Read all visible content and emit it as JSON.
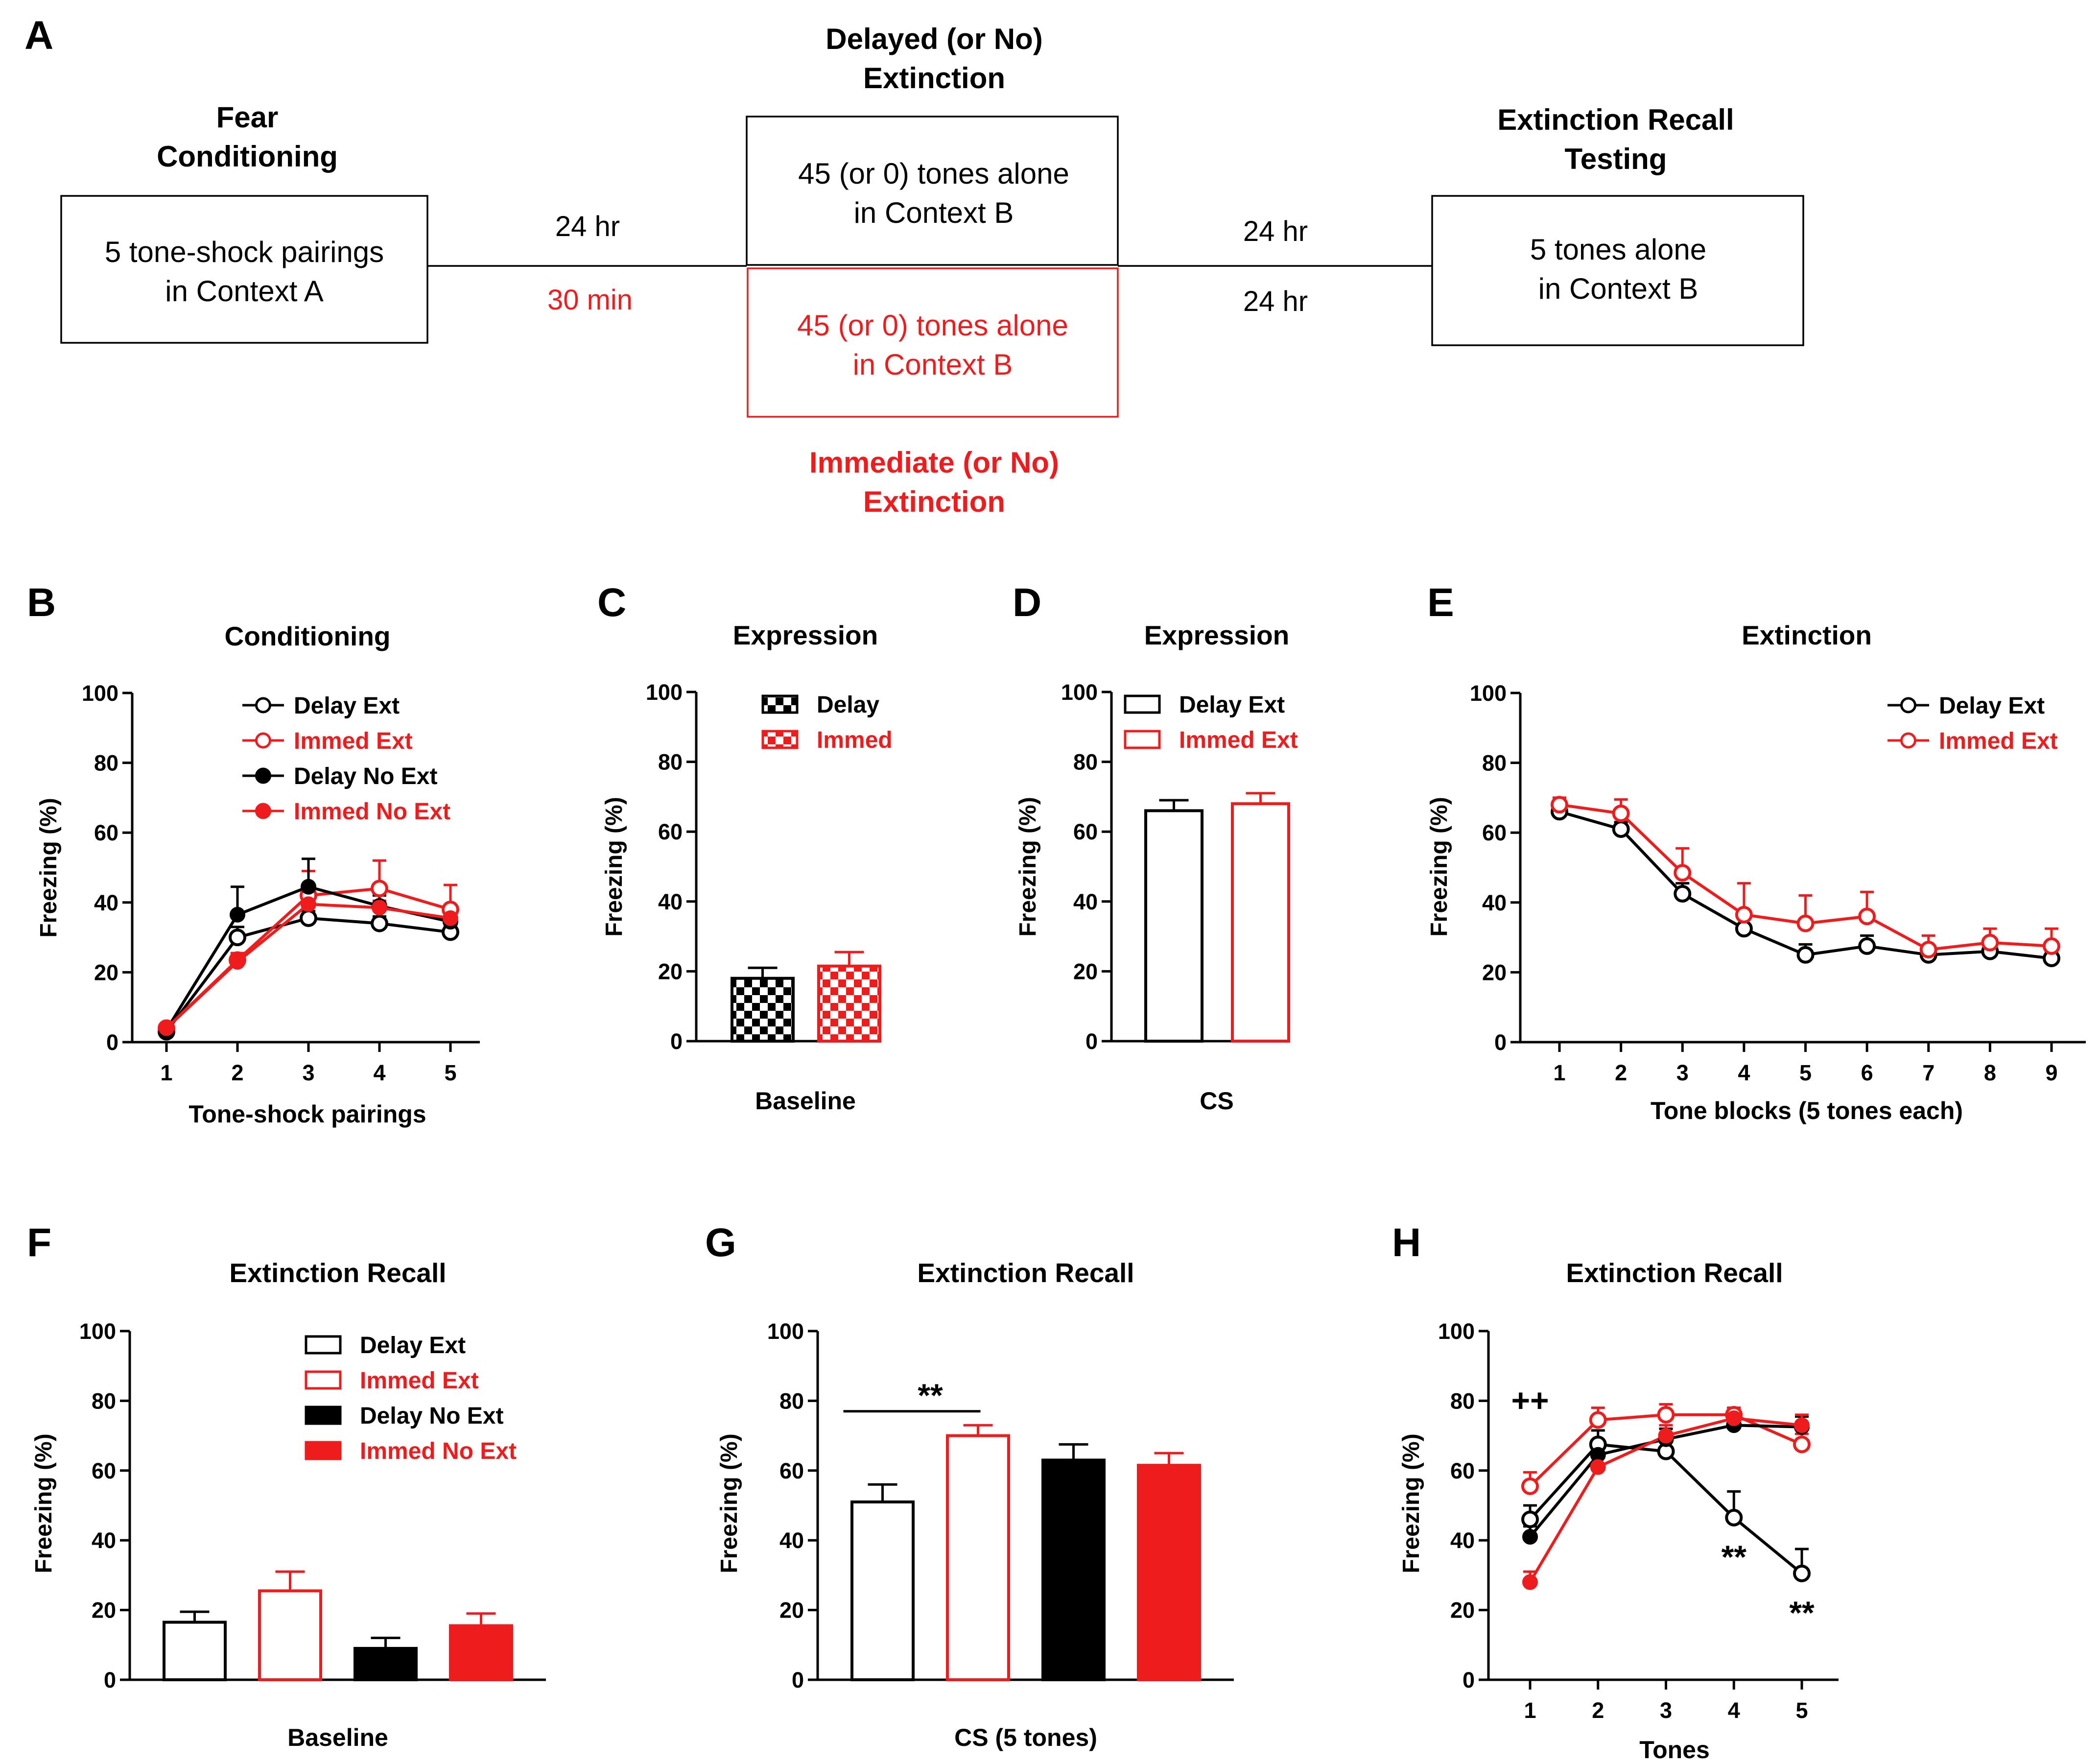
{
  "colors": {
    "black": "#000000",
    "red": "#ee1c1c"
  },
  "diagram": {
    "panel": "A",
    "fear_head": [
      "Fear",
      "Conditioning"
    ],
    "fear_box": [
      "5 tone-shock pairings",
      "in Context A"
    ],
    "delayed_head": [
      "Delayed (or No)",
      "Extinction"
    ],
    "delayed_box": [
      "45 (or 0) tones alone",
      "in Context B"
    ],
    "immediate_box": [
      "45 (or 0) tones alone",
      "in Context B"
    ],
    "immediate_head": [
      "Immediate (or No)",
      "Extinction"
    ],
    "recall_head": [
      "Extinction Recall",
      "Testing"
    ],
    "recall_box": [
      "5 tones alone",
      "in Context B"
    ],
    "time_delay_1": "24 hr",
    "time_immed_1": "30 min",
    "time_2a": "24 hr",
    "time_2b": "24 hr"
  },
  "chart_data": [
    {
      "panel": "B",
      "type": "line",
      "title": "Conditioning",
      "xlabel": "Tone-shock pairings",
      "ylabel": "Freezing (%)",
      "x": [
        1,
        2,
        3,
        4,
        5
      ],
      "ylim": [
        0,
        100
      ],
      "yticks": [
        0,
        20,
        40,
        60,
        80,
        100
      ],
      "series": [
        {
          "name": "Delay Ext",
          "color": "black",
          "filled": false,
          "values": [
            3,
            30,
            35.5,
            34,
            31.5
          ],
          "errors": [
            1,
            3,
            2,
            2,
            2
          ]
        },
        {
          "name": "Immed Ext",
          "color": "red",
          "filled": false,
          "values": [
            4,
            23.5,
            42,
            44,
            38
          ],
          "errors": [
            1,
            2,
            7,
            8,
            7
          ]
        },
        {
          "name": "Delay No Ext",
          "color": "black",
          "filled": true,
          "values": [
            3.5,
            36.5,
            44.5,
            39,
            34.5
          ],
          "errors": [
            1,
            8,
            8,
            3,
            3
          ]
        },
        {
          "name": "Immed No Ext",
          "color": "red",
          "filled": true,
          "values": [
            4,
            23,
            39.5,
            38.5,
            35.5
          ],
          "errors": [
            1,
            2,
            4,
            2,
            3
          ]
        }
      ]
    },
    {
      "panel": "C",
      "type": "bar",
      "title": "Expression",
      "xlabel": "Baseline",
      "ylabel": "Freezing (%)",
      "ylim": [
        0,
        100
      ],
      "yticks": [
        0,
        20,
        40,
        60,
        80,
        100
      ],
      "series": [
        {
          "name": "Delay",
          "color": "black",
          "pattern": "checker",
          "value": 18,
          "error": 3
        },
        {
          "name": "Immed",
          "color": "red",
          "pattern": "checker",
          "value": 21.5,
          "error": 4
        }
      ]
    },
    {
      "panel": "D",
      "type": "bar",
      "title": "Expression",
      "xlabel": "CS",
      "ylabel": "Freezing (%)",
      "ylim": [
        0,
        100
      ],
      "yticks": [
        0,
        20,
        40,
        60,
        80,
        100
      ],
      "series": [
        {
          "name": "Delay Ext",
          "color": "black",
          "pattern": "open",
          "value": 66,
          "error": 3
        },
        {
          "name": "Immed Ext",
          "color": "red",
          "pattern": "open",
          "value": 68,
          "error": 3
        }
      ]
    },
    {
      "panel": "E",
      "type": "line",
      "title": "Extinction",
      "xlabel": "Tone blocks (5 tones each)",
      "ylabel": "Freezing (%)",
      "x": [
        1,
        2,
        3,
        4,
        5,
        6,
        7,
        8,
        9
      ],
      "ylim": [
        0,
        100
      ],
      "yticks": [
        0,
        20,
        40,
        60,
        80,
        100
      ],
      "series": [
        {
          "name": "Delay Ext",
          "color": "black",
          "filled": false,
          "values": [
            66,
            61,
            42.5,
            32.5,
            25,
            27.5,
            25,
            26,
            24
          ],
          "errors": [
            2,
            2,
            3,
            3,
            3,
            3,
            2,
            2,
            2
          ]
        },
        {
          "name": "Immed Ext",
          "color": "red",
          "filled": false,
          "values": [
            68,
            65.5,
            48.5,
            36.5,
            34,
            36,
            26.5,
            28.5,
            27.5
          ],
          "errors": [
            2,
            4,
            7,
            9,
            8,
            7,
            4,
            4,
            5
          ]
        }
      ]
    },
    {
      "panel": "F",
      "type": "bar",
      "title": "Extinction Recall",
      "xlabel": "Baseline",
      "ylabel": "Freezing (%)",
      "ylim": [
        0,
        100
      ],
      "yticks": [
        0,
        20,
        40,
        60,
        80,
        100
      ],
      "series": [
        {
          "name": "Delay Ext",
          "color": "black",
          "pattern": "open",
          "value": 16.5,
          "error": 3
        },
        {
          "name": "Immed Ext",
          "color": "red",
          "pattern": "open",
          "value": 25.5,
          "error": 5.5
        },
        {
          "name": "Delay No Ext",
          "color": "black",
          "pattern": "solid",
          "value": 9,
          "error": 3
        },
        {
          "name": "Immed No Ext",
          "color": "red",
          "pattern": "solid",
          "value": 15.5,
          "error": 3.5
        }
      ]
    },
    {
      "panel": "G",
      "type": "bar",
      "title": "Extinction Recall",
      "xlabel": "CS (5 tones)",
      "ylabel": "Freezing (%)",
      "ylim": [
        0,
        100
      ],
      "yticks": [
        0,
        20,
        40,
        60,
        80,
        100
      ],
      "series": [
        {
          "name": "Delay Ext",
          "color": "black",
          "pattern": "open",
          "value": 51,
          "error": 5
        },
        {
          "name": "Immed Ext",
          "color": "red",
          "pattern": "open",
          "value": 70,
          "error": 3
        },
        {
          "name": "Delay No Ext",
          "color": "black",
          "pattern": "solid",
          "value": 63,
          "error": 4.5
        },
        {
          "name": "Immed No Ext",
          "color": "red",
          "pattern": "solid",
          "value": 61.5,
          "error": 3.5
        }
      ],
      "annotation": "**"
    },
    {
      "panel": "H",
      "type": "line",
      "title": "Extinction Recall",
      "xlabel": "Tones",
      "ylabel": "Freezing (%)",
      "x": [
        1,
        2,
        3,
        4,
        5
      ],
      "ylim": [
        0,
        100
      ],
      "yticks": [
        0,
        20,
        40,
        60,
        80,
        100
      ],
      "series": [
        {
          "name": "Delay Ext",
          "color": "black",
          "filled": false,
          "values": [
            46,
            67.5,
            65.5,
            46.5,
            30.5
          ],
          "errors": [
            4,
            4,
            3,
            7.5,
            7
          ]
        },
        {
          "name": "Immed Ext",
          "color": "red",
          "filled": false,
          "values": [
            55.5,
            74.5,
            76,
            76,
            67.5
          ],
          "errors": [
            4,
            3.5,
            3,
            2,
            3
          ]
        },
        {
          "name": "Delay No Ext",
          "color": "black",
          "filled": true,
          "values": [
            41,
            64.5,
            69,
            73,
            72.5
          ],
          "errors": [
            3,
            4,
            3,
            2,
            3
          ]
        },
        {
          "name": "Immed No Ext",
          "color": "red",
          "filled": true,
          "values": [
            28,
            61,
            70,
            75,
            73
          ],
          "errors": [
            3,
            4,
            3,
            3,
            3
          ]
        }
      ],
      "annotations": [
        {
          "text": "++",
          "x": 1
        },
        {
          "text": "**",
          "x": 4
        },
        {
          "text": "**",
          "x": 5
        }
      ]
    }
  ]
}
